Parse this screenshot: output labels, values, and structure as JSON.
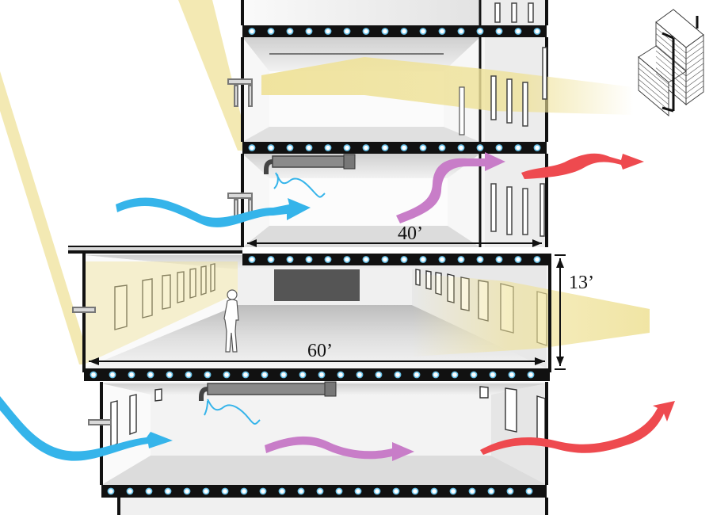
{
  "dimensions": {
    "upper_width": "40’",
    "main_width": "60’",
    "main_height": "13’"
  },
  "colors": {
    "cool_air": "#35b4ea",
    "mixed_air": "#c87dc8",
    "warm_air": "#ee4a4f",
    "daylight": "#efe29a",
    "structure": "#111111",
    "slab_dot": "#6ac3ea"
  },
  "icons": [
    "person-silhouette",
    "building-massing-key",
    "supply-duct"
  ]
}
